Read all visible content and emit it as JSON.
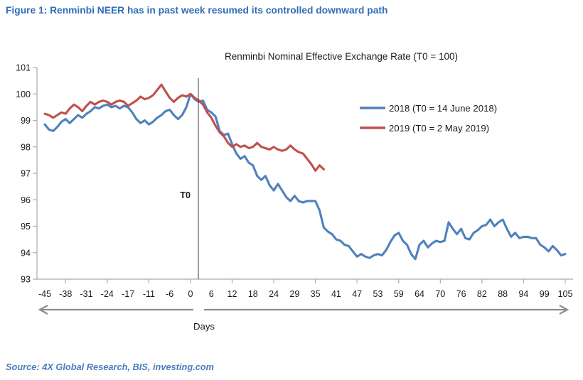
{
  "figure_title": "Figure 1: Renminbi NEER has in past week resumed its controlled downward path",
  "source": "Source: 4X Global Research, BIS, investing.com",
  "colors": {
    "figure_title": "#2f6db8",
    "source_text": "#4a7ebb",
    "axis_line": "#ababab",
    "tick_text": "#1a1a1a",
    "t0_line": "#3f3f3f",
    "range_arrow": "#8c8c8c",
    "series_2018": "#4F81BD",
    "series_2019": "#C0504D"
  },
  "chart_data": {
    "type": "line",
    "title": "Renminbi Nominal Effective Exchange Rate (T0 = 100)",
    "xlabel": "Days",
    "t0_label": "T0",
    "t0_tick_index": 7,
    "ylim": [
      93,
      101
    ],
    "y_ticks": [
      93,
      94,
      95,
      96,
      97,
      98,
      99,
      100,
      101
    ],
    "x_tick_labels": [
      "-45",
      "-38",
      "-31",
      "-24",
      "-17",
      "-11",
      "-6",
      "0",
      "6",
      "12",
      "18",
      "24",
      "29",
      "35",
      "41",
      "47",
      "53",
      "59",
      "64",
      "70",
      "76",
      "82",
      "88",
      "94",
      "99",
      "105"
    ],
    "grid": false,
    "legend_position": "inside upper right",
    "series": [
      {
        "name": "2018 (T0 = 14 June 2018)",
        "color": "#4F81BD",
        "x_start": 0,
        "x_step": 0.2,
        "end_marker": false,
        "values": [
          98.85,
          98.65,
          98.6,
          98.75,
          98.95,
          99.05,
          98.9,
          99.05,
          99.2,
          99.1,
          99.25,
          99.35,
          99.5,
          99.45,
          99.55,
          99.6,
          99.5,
          99.55,
          99.45,
          99.55,
          99.5,
          99.3,
          99.05,
          98.9,
          99.0,
          98.85,
          98.95,
          99.1,
          99.2,
          99.35,
          99.4,
          99.2,
          99.05,
          99.2,
          99.5,
          100.0,
          99.8,
          99.7,
          99.75,
          99.4,
          99.3,
          99.15,
          98.6,
          98.45,
          98.5,
          98.1,
          97.75,
          97.55,
          97.65,
          97.4,
          97.3,
          96.9,
          96.75,
          96.9,
          96.55,
          96.35,
          96.6,
          96.35,
          96.1,
          95.95,
          96.15,
          95.95,
          95.9,
          95.95,
          95.95,
          95.95,
          95.6,
          94.95,
          94.8,
          94.7,
          94.5,
          94.45,
          94.3,
          94.25,
          94.05,
          93.85,
          93.95,
          93.85,
          93.8,
          93.9,
          93.95,
          93.9,
          94.1,
          94.4,
          94.65,
          94.75,
          94.45,
          94.3,
          93.95,
          93.76,
          94.3,
          94.45,
          94.2,
          94.35,
          94.45,
          94.4,
          94.45,
          95.15,
          94.9,
          94.7,
          94.9,
          94.55,
          94.5,
          94.75,
          94.85,
          95.0,
          95.05,
          95.25,
          95.0,
          95.15,
          95.25,
          94.9,
          94.6,
          94.75,
          94.55,
          94.6,
          94.6,
          94.55,
          94.55,
          94.3,
          94.2,
          94.05,
          94.25,
          94.1,
          93.9,
          93.95
        ]
      },
      {
        "name": "2019 (T0 = 2 May 2019)",
        "color": "#C0504D",
        "x_start": 0,
        "x_step": 0.2,
        "end_marker": false,
        "values": [
          99.25,
          99.2,
          99.1,
          99.2,
          99.3,
          99.25,
          99.45,
          99.6,
          99.5,
          99.35,
          99.55,
          99.7,
          99.6,
          99.7,
          99.75,
          99.7,
          99.6,
          99.7,
          99.75,
          99.7,
          99.55,
          99.65,
          99.75,
          99.9,
          99.8,
          99.85,
          99.95,
          100.15,
          100.35,
          100.1,
          99.85,
          99.7,
          99.85,
          99.95,
          99.9,
          100.0,
          99.85,
          99.75,
          99.6,
          99.3,
          99.1,
          98.8,
          98.55,
          98.4,
          98.15,
          98.0,
          98.1,
          98.0,
          98.05,
          97.95,
          98.0,
          98.15,
          98.0,
          97.95,
          97.9,
          98.0,
          97.9,
          97.85,
          97.9,
          98.05,
          97.9,
          97.8,
          97.75,
          97.55,
          97.35,
          97.1,
          97.3,
          97.15
        ]
      }
    ]
  }
}
